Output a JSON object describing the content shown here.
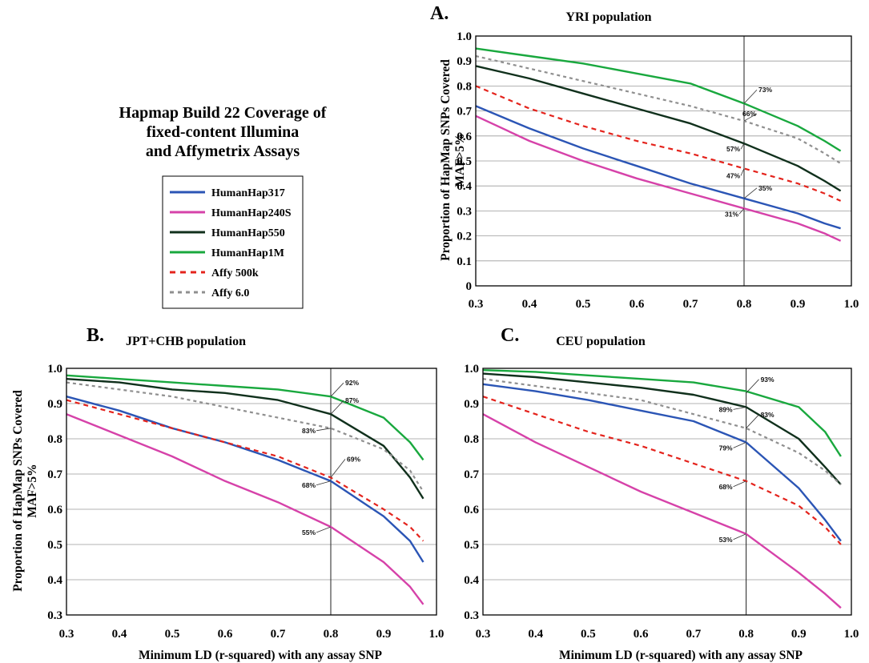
{
  "figure": {
    "main_title": [
      "Hapmap Build 22 Coverage of",
      "fixed-content Illumina",
      "and Affymetrix Assays"
    ],
    "legend": [
      {
        "label": "HumanHap317",
        "color": "#2b55b5",
        "dash": "solid"
      },
      {
        "label": "HumanHap240S",
        "color": "#d642a9",
        "dash": "solid"
      },
      {
        "label": "HumanHap550",
        "color": "#10301c",
        "dash": "solid"
      },
      {
        "label": "HumanHap1M",
        "color": "#19a83e",
        "dash": "solid"
      },
      {
        "label": "Affy 500k",
        "color": "#e4231c",
        "dash": "dashed"
      },
      {
        "label": "Affy 6.0",
        "color": "#8f8f8f",
        "dash": "dashed"
      }
    ]
  },
  "chart_data": [
    {
      "type": "line",
      "panel_letter": "A.",
      "title": "YRI population",
      "ylabel": [
        "Proportion of HapMap SNPs  Covered",
        "MAF>5%"
      ],
      "xlabel": "",
      "xlim": [
        0.3,
        1.0
      ],
      "ylim": [
        0,
        1.0
      ],
      "xticks": [
        "0.3",
        "0.4",
        "0.5",
        "0.6",
        "0.7",
        "0.8",
        "0.9",
        "1.0"
      ],
      "yticks": [
        "0",
        "0.1",
        "0.2",
        "0.3",
        "0.4",
        "0.5",
        "0.6",
        "0.7",
        "0.8",
        "0.9",
        "1.0"
      ],
      "reference_x": 0.8,
      "x": [
        0.3,
        0.4,
        0.5,
        0.6,
        0.7,
        0.8,
        0.9,
        0.95,
        0.98
      ],
      "series": [
        {
          "name": "HumanHap317",
          "values": [
            0.72,
            0.63,
            0.55,
            0.48,
            0.41,
            0.35,
            0.29,
            0.25,
            0.23
          ]
        },
        {
          "name": "HumanHap240S",
          "values": [
            0.68,
            0.58,
            0.5,
            0.43,
            0.37,
            0.31,
            0.25,
            0.21,
            0.18
          ]
        },
        {
          "name": "HumanHap550",
          "values": [
            0.88,
            0.83,
            0.77,
            0.71,
            0.65,
            0.57,
            0.48,
            0.42,
            0.38
          ]
        },
        {
          "name": "HumanHap1M",
          "values": [
            0.95,
            0.92,
            0.89,
            0.85,
            0.81,
            0.73,
            0.64,
            0.58,
            0.54
          ]
        },
        {
          "name": "Affy 500k",
          "values": [
            0.8,
            0.71,
            0.64,
            0.58,
            0.53,
            0.47,
            0.41,
            0.37,
            0.34
          ]
        },
        {
          "name": "Affy 6.0",
          "values": [
            0.92,
            0.87,
            0.82,
            0.77,
            0.72,
            0.66,
            0.59,
            0.53,
            0.49
          ]
        }
      ],
      "annotations": [
        {
          "text": "73%",
          "x": 0.8,
          "y": 0.73,
          "series": "HumanHap1M"
        },
        {
          "text": "66%",
          "x": 0.8,
          "y": 0.66,
          "series": "Affy 6.0"
        },
        {
          "text": "57%",
          "x": 0.8,
          "y": 0.57,
          "series": "HumanHap550"
        },
        {
          "text": "47%",
          "x": 0.8,
          "y": 0.47,
          "series": "Affy 500k"
        },
        {
          "text": "35%",
          "x": 0.8,
          "y": 0.35,
          "series": "HumanHap317"
        },
        {
          "text": "31%",
          "x": 0.8,
          "y": 0.31,
          "series": "HumanHap240S"
        }
      ]
    },
    {
      "type": "line",
      "panel_letter": "B.",
      "title": "JPT+CHB population",
      "ylabel": [
        "Proportion of HapMap SNPs  Covered",
        "MAF>5%"
      ],
      "xlabel": "Minimum LD (r-squared) with any assay SNP",
      "xlim": [
        0.3,
        1.0
      ],
      "ylim": [
        0.3,
        1.0
      ],
      "xticks": [
        "0.3",
        "0.4",
        "0.5",
        "0.6",
        "0.7",
        "0.8",
        "0.9",
        "1.0"
      ],
      "yticks": [
        "0.3",
        "0.4",
        "0.5",
        "0.6",
        "0.7",
        "0.8",
        "0.9",
        "1.0"
      ],
      "reference_x": 0.8,
      "x": [
        0.3,
        0.4,
        0.5,
        0.6,
        0.7,
        0.8,
        0.9,
        0.95,
        0.975
      ],
      "series": [
        {
          "name": "HumanHap317",
          "values": [
            0.92,
            0.88,
            0.83,
            0.79,
            0.74,
            0.68,
            0.58,
            0.51,
            0.45
          ]
        },
        {
          "name": "HumanHap240S",
          "values": [
            0.87,
            0.81,
            0.75,
            0.68,
            0.62,
            0.55,
            0.45,
            0.38,
            0.33
          ]
        },
        {
          "name": "HumanHap550",
          "values": [
            0.97,
            0.96,
            0.94,
            0.93,
            0.91,
            0.87,
            0.78,
            0.69,
            0.63
          ]
        },
        {
          "name": "HumanHap1M",
          "values": [
            0.98,
            0.97,
            0.96,
            0.95,
            0.94,
            0.92,
            0.86,
            0.79,
            0.74
          ]
        },
        {
          "name": "Affy 500k",
          "values": [
            0.91,
            0.87,
            0.83,
            0.79,
            0.75,
            0.69,
            0.6,
            0.55,
            0.51
          ]
        },
        {
          "name": "Affy 6.0",
          "values": [
            0.96,
            0.94,
            0.92,
            0.89,
            0.86,
            0.83,
            0.77,
            0.71,
            0.65
          ]
        }
      ],
      "annotations": [
        {
          "text": "92%",
          "x": 0.8,
          "y": 0.92,
          "series": "HumanHap1M"
        },
        {
          "text": "87%",
          "x": 0.8,
          "y": 0.87,
          "series": "HumanHap550"
        },
        {
          "text": "83%",
          "x": 0.8,
          "y": 0.83,
          "series": "Affy 6.0"
        },
        {
          "text": "69%",
          "x": 0.8,
          "y": 0.69,
          "series": "Affy 500k"
        },
        {
          "text": "68%",
          "x": 0.8,
          "y": 0.68,
          "series": "HumanHap317"
        },
        {
          "text": "55%",
          "x": 0.8,
          "y": 0.55,
          "series": "HumanHap240S"
        }
      ]
    },
    {
      "type": "line",
      "panel_letter": "C.",
      "title": "CEU population",
      "ylabel": [],
      "xlabel": "Minimum LD (r-squared) with any assay SNP",
      "xlim": [
        0.3,
        1.0
      ],
      "ylim": [
        0.3,
        1.0
      ],
      "xticks": [
        "0.3",
        "0.4",
        "0.5",
        "0.6",
        "0.7",
        "0.8",
        "0.9",
        "1.0"
      ],
      "yticks": [
        "0.3",
        "0.4",
        "0.5",
        "0.6",
        "0.7",
        "0.8",
        "0.9",
        "1.0"
      ],
      "reference_x": 0.8,
      "x": [
        0.3,
        0.4,
        0.5,
        0.6,
        0.7,
        0.8,
        0.9,
        0.95,
        0.98
      ],
      "series": [
        {
          "name": "HumanHap317",
          "values": [
            0.955,
            0.935,
            0.91,
            0.88,
            0.85,
            0.79,
            0.66,
            0.57,
            0.51
          ]
        },
        {
          "name": "HumanHap240S",
          "values": [
            0.87,
            0.79,
            0.72,
            0.65,
            0.59,
            0.53,
            0.42,
            0.36,
            0.32
          ]
        },
        {
          "name": "HumanHap550",
          "values": [
            0.985,
            0.975,
            0.96,
            0.945,
            0.925,
            0.89,
            0.8,
            0.72,
            0.67
          ]
        },
        {
          "name": "HumanHap1M",
          "values": [
            0.995,
            0.99,
            0.98,
            0.97,
            0.96,
            0.935,
            0.89,
            0.82,
            0.75
          ]
        },
        {
          "name": "Affy 500k",
          "values": [
            0.92,
            0.87,
            0.82,
            0.78,
            0.73,
            0.68,
            0.61,
            0.55,
            0.5
          ]
        },
        {
          "name": "Affy 6.0",
          "values": [
            0.97,
            0.95,
            0.93,
            0.91,
            0.87,
            0.83,
            0.76,
            0.71,
            0.67
          ]
        }
      ],
      "annotations": [
        {
          "text": "93%",
          "x": 0.8,
          "y": 0.93,
          "series": "HumanHap1M"
        },
        {
          "text": "89%",
          "x": 0.8,
          "y": 0.89,
          "series": "HumanHap550"
        },
        {
          "text": "83%",
          "x": 0.8,
          "y": 0.83,
          "series": "Affy 6.0"
        },
        {
          "text": "79%",
          "x": 0.8,
          "y": 0.79,
          "series": "HumanHap317"
        },
        {
          "text": "68%",
          "x": 0.8,
          "y": 0.68,
          "series": "Affy 500k"
        },
        {
          "text": "53%",
          "x": 0.8,
          "y": 0.53,
          "series": "HumanHap240S"
        }
      ]
    }
  ]
}
